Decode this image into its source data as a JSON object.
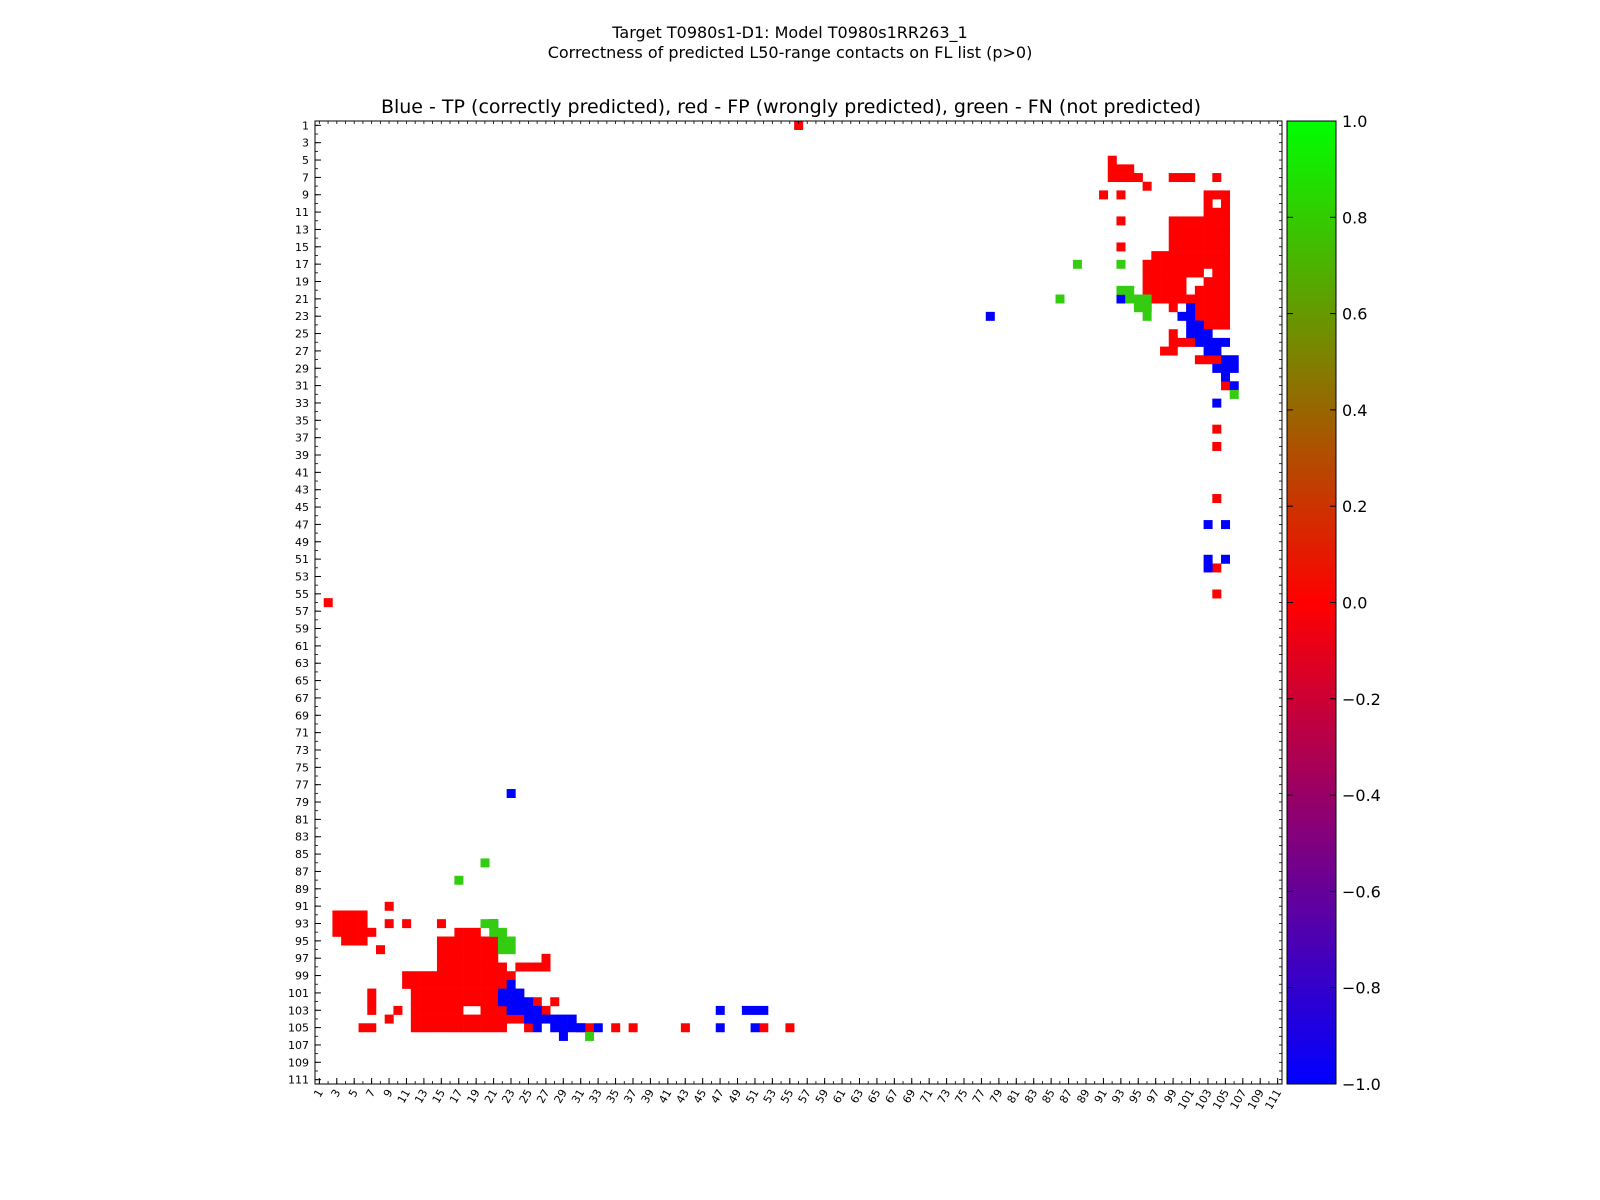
{
  "titles": {
    "line1": "Target T0980s1-D1: Model T0980s1RR263_1",
    "line2": "Correctness of predicted L50-range contacts on FL list (p>0)",
    "axes_title": "Blue - TP (correctly predicted), red - FP (wrongly predicted), green - FN (not predicted)"
  },
  "colors": {
    "tp": "#0000ff",
    "fp": "#ff0000",
    "fn": "#33cc11",
    "colormap_top": "#00ff00",
    "colormap_mid": "#ff0000",
    "colormap_bottom": "#0000ff"
  },
  "chart_data": {
    "type": "heatmap",
    "title": "Blue - TP (correctly predicted), red - FP (wrongly predicted), green - FN (not predicted)",
    "xlim": [
      1,
      111
    ],
    "ylim": [
      1,
      111
    ],
    "y_inverted": true,
    "x_ticks": [
      "1",
      "3",
      "5",
      "7",
      "9",
      "11",
      "13",
      "15",
      "17",
      "19",
      "21",
      "23",
      "25",
      "27",
      "29",
      "31",
      "33",
      "35",
      "37",
      "39",
      "41",
      "43",
      "45",
      "47",
      "49",
      "51",
      "53",
      "55",
      "57",
      "59",
      "61",
      "63",
      "65",
      "67",
      "69",
      "71",
      "73",
      "75",
      "77",
      "79",
      "81",
      "83",
      "85",
      "87",
      "89",
      "91",
      "93",
      "95",
      "97",
      "99",
      "101",
      "103",
      "105",
      "107",
      "109",
      "111"
    ],
    "y_ticks": [
      "1",
      "3",
      "5",
      "7",
      "9",
      "11",
      "13",
      "15",
      "17",
      "19",
      "21",
      "23",
      "25",
      "27",
      "29",
      "31",
      "33",
      "35",
      "37",
      "39",
      "41",
      "43",
      "45",
      "47",
      "49",
      "51",
      "53",
      "55",
      "57",
      "59",
      "61",
      "63",
      "65",
      "67",
      "69",
      "71",
      "73",
      "75",
      "77",
      "79",
      "81",
      "83",
      "85",
      "87",
      "89",
      "91",
      "93",
      "95",
      "97",
      "99",
      "101",
      "103",
      "105",
      "107",
      "109",
      "111"
    ],
    "colorbar": {
      "min": -1.0,
      "max": 1.0,
      "ticks": [
        "1.0",
        "0.8",
        "0.6",
        "0.4",
        "0.2",
        "0.0",
        "−0.2",
        "−0.4",
        "−0.6",
        "−0.8",
        "−1.0"
      ]
    },
    "categories": {
      "TP": -1,
      "FP": 0,
      "FN": 1
    },
    "runs": {
      "TP": [
        [
          78,
          23,
          23
        ],
        [
          93,
          21,
          21
        ],
        [
          100,
          23,
          23
        ],
        [
          101,
          22,
          22
        ],
        [
          101,
          23,
          25
        ],
        [
          102,
          24,
          26
        ],
        [
          103,
          25,
          27
        ],
        [
          104,
          26,
          27
        ],
        [
          104,
          29,
          29
        ],
        [
          104,
          33,
          33
        ],
        [
          105,
          26,
          26
        ],
        [
          105,
          28,
          30
        ],
        [
          106,
          28,
          29
        ],
        [
          106,
          31,
          31
        ],
        [
          103,
          47,
          47
        ],
        [
          105,
          47,
          47
        ],
        [
          103,
          51,
          52
        ],
        [
          105,
          51,
          51
        ],
        [
          23,
          78,
          78
        ],
        [
          21,
          93,
          93
        ],
        [
          23,
          100,
          101
        ],
        [
          22,
          101,
          102
        ],
        [
          23,
          101,
          103
        ],
        [
          24,
          101,
          103
        ],
        [
          25,
          102,
          104
        ],
        [
          26,
          103,
          104
        ],
        [
          27,
          104,
          104
        ],
        [
          26,
          105,
          105
        ],
        [
          28,
          104,
          105
        ],
        [
          29,
          104,
          105
        ],
        [
          30,
          104,
          105
        ],
        [
          29,
          105,
          106
        ],
        [
          31,
          105,
          105
        ],
        [
          33,
          105,
          105
        ],
        [
          47,
          103,
          103
        ],
        [
          51,
          103,
          103
        ],
        [
          50,
          103,
          103
        ],
        [
          52,
          103,
          103
        ],
        [
          47,
          105,
          105
        ],
        [
          51,
          105,
          105
        ]
      ],
      "FP": [
        [
          56,
          1,
          1
        ],
        [
          92,
          5,
          7
        ],
        [
          93,
          6,
          7
        ],
        [
          94,
          6,
          7
        ],
        [
          95,
          7,
          7
        ],
        [
          96,
          8,
          8
        ],
        [
          91,
          9,
          9
        ],
        [
          93,
          9,
          9
        ],
        [
          93,
          12,
          12
        ],
        [
          93,
          15,
          15
        ],
        [
          99,
          7,
          7
        ],
        [
          100,
          7,
          7
        ],
        [
          101,
          7,
          7
        ],
        [
          104,
          7,
          7
        ],
        [
          103,
          9,
          12
        ],
        [
          104,
          9,
          9
        ],
        [
          105,
          9,
          24
        ],
        [
          104,
          11,
          24
        ],
        [
          103,
          12,
          17
        ],
        [
          103,
          19,
          24
        ],
        [
          102,
          12,
          18
        ],
        [
          102,
          20,
          23
        ],
        [
          101,
          12,
          18
        ],
        [
          101,
          21,
          22
        ],
        [
          100,
          12,
          21
        ],
        [
          99,
          12,
          22
        ],
        [
          98,
          16,
          21
        ],
        [
          97,
          16,
          21
        ],
        [
          96,
          17,
          22
        ],
        [
          95,
          21,
          21
        ],
        [
          99,
          25,
          27
        ],
        [
          98,
          27,
          27
        ],
        [
          100,
          26,
          26
        ],
        [
          101,
          26,
          26
        ],
        [
          102,
          28,
          28
        ],
        [
          103,
          28,
          28
        ],
        [
          104,
          27,
          28
        ],
        [
          105,
          31,
          31
        ],
        [
          104,
          36,
          36
        ],
        [
          104,
          38,
          38
        ],
        [
          104,
          44,
          44
        ],
        [
          104,
          52,
          52
        ],
        [
          104,
          55,
          55
        ],
        [
          2,
          56,
          56
        ],
        [
          3,
          92,
          94
        ],
        [
          4,
          92,
          95
        ],
        [
          5,
          92,
          95
        ],
        [
          6,
          92,
          95
        ],
        [
          7,
          94,
          94
        ],
        [
          8,
          96,
          96
        ],
        [
          9,
          91,
          91
        ],
        [
          9,
          93,
          93
        ],
        [
          7,
          101,
          103
        ],
        [
          6,
          105,
          105
        ],
        [
          7,
          105,
          105
        ],
        [
          9,
          104,
          104
        ],
        [
          10,
          103,
          103
        ],
        [
          11,
          93,
          93
        ],
        [
          11,
          99,
          100
        ],
        [
          12,
          99,
          105
        ],
        [
          13,
          99,
          105
        ],
        [
          14,
          99,
          105
        ],
        [
          15,
          93,
          93
        ],
        [
          15,
          95,
          105
        ],
        [
          16,
          95,
          105
        ],
        [
          17,
          94,
          105
        ],
        [
          18,
          94,
          102
        ],
        [
          18,
          104,
          105
        ],
        [
          19,
          94,
          102
        ],
        [
          19,
          104,
          105
        ],
        [
          20,
          95,
          105
        ],
        [
          21,
          95,
          105
        ],
        [
          22,
          98,
          105
        ],
        [
          23,
          99,
          99
        ],
        [
          23,
          104,
          104
        ],
        [
          24,
          98,
          98
        ],
        [
          24,
          102,
          104
        ],
        [
          25,
          98,
          98
        ],
        [
          25,
          104,
          105
        ],
        [
          26,
          98,
          98
        ],
        [
          26,
          102,
          102
        ],
        [
          27,
          97,
          98
        ],
        [
          27,
          103,
          103
        ],
        [
          28,
          102,
          102
        ],
        [
          31,
          105,
          105
        ],
        [
          32,
          105,
          105
        ],
        [
          35,
          105,
          105
        ],
        [
          37,
          105,
          105
        ],
        [
          43,
          105,
          105
        ],
        [
          52,
          105,
          105
        ],
        [
          55,
          105,
          105
        ]
      ],
      "FN": [
        [
          88,
          17,
          17
        ],
        [
          93,
          17,
          17
        ],
        [
          86,
          21,
          21
        ],
        [
          93,
          20,
          20
        ],
        [
          94,
          20,
          21
        ],
        [
          95,
          21,
          22
        ],
        [
          96,
          21,
          22
        ],
        [
          96,
          23,
          23
        ],
        [
          106,
          32,
          32
        ],
        [
          17,
          88,
          88
        ],
        [
          20,
          86,
          86
        ],
        [
          20,
          93,
          93
        ],
        [
          21,
          93,
          94
        ],
        [
          22,
          94,
          96
        ],
        [
          23,
          95,
          96
        ],
        [
          32,
          106,
          106
        ]
      ]
    }
  }
}
